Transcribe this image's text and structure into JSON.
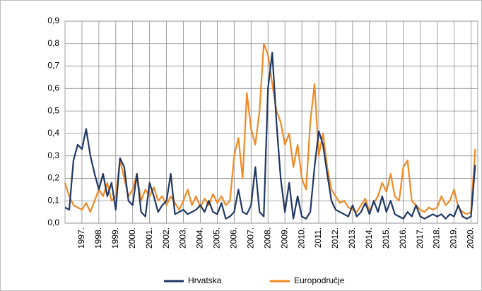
{
  "chart_data": {
    "type": "line",
    "xlim": [
      1996,
      2020.4
    ],
    "ylim": [
      0,
      0.9
    ],
    "yticks": [
      {
        "value": 0,
        "label": "0,0"
      },
      {
        "value": 0.1,
        "label": "0,1"
      },
      {
        "value": 0.2,
        "label": "0,2"
      },
      {
        "value": 0.3,
        "label": "0,3"
      },
      {
        "value": 0.4,
        "label": "0,4"
      },
      {
        "value": 0.5,
        "label": "0,5"
      },
      {
        "value": 0.6,
        "label": "0,6"
      },
      {
        "value": 0.7,
        "label": "0,7"
      },
      {
        "value": 0.8,
        "label": "0,8"
      },
      {
        "value": 0.9,
        "label": "0,9"
      }
    ],
    "xticks": [
      {
        "value": 1997,
        "label": "1997."
      },
      {
        "value": 1998,
        "label": "1998."
      },
      {
        "value": 1999,
        "label": "1999."
      },
      {
        "value": 2000,
        "label": "2000."
      },
      {
        "value": 2001,
        "label": "2001."
      },
      {
        "value": 2002,
        "label": "2002."
      },
      {
        "value": 2003,
        "label": "2003."
      },
      {
        "value": 2004,
        "label": "2004."
      },
      {
        "value": 2005,
        "label": "2005."
      },
      {
        "value": 2006,
        "label": "2006."
      },
      {
        "value": 2007,
        "label": "2007."
      },
      {
        "value": 2008,
        "label": "2008."
      },
      {
        "value": 2009,
        "label": "2009."
      },
      {
        "value": 2010,
        "label": "2010."
      },
      {
        "value": 2011,
        "label": "2011."
      },
      {
        "value": 2012,
        "label": "2012."
      },
      {
        "value": 2013,
        "label": "2013."
      },
      {
        "value": 2014,
        "label": "2014."
      },
      {
        "value": 2015,
        "label": "2015."
      },
      {
        "value": 2016,
        "label": "2016."
      },
      {
        "value": 2017,
        "label": "2017."
      },
      {
        "value": 2018,
        "label": "2018."
      },
      {
        "value": 2019,
        "label": "2019."
      },
      {
        "value": 2020,
        "label": "2020."
      }
    ],
    "grid": true,
    "legend": "bottom",
    "x": [
      1996.0,
      1996.25,
      1996.5,
      1996.75,
      1997.0,
      1997.25,
      1997.5,
      1997.75,
      1998.0,
      1998.25,
      1998.5,
      1998.75,
      1999.0,
      1999.25,
      1999.5,
      1999.75,
      2000.0,
      2000.25,
      2000.5,
      2000.75,
      2001.0,
      2001.25,
      2001.5,
      2001.75,
      2002.0,
      2002.25,
      2002.5,
      2002.75,
      2003.0,
      2003.25,
      2003.5,
      2003.75,
      2004.0,
      2004.25,
      2004.5,
      2004.75,
      2005.0,
      2005.25,
      2005.5,
      2005.75,
      2006.0,
      2006.25,
      2006.5,
      2006.75,
      2007.0,
      2007.25,
      2007.5,
      2007.75,
      2008.0,
      2008.25,
      2008.5,
      2008.75,
      2009.0,
      2009.25,
      2009.5,
      2009.75,
      2010.0,
      2010.25,
      2010.5,
      2010.75,
      2011.0,
      2011.25,
      2011.5,
      2011.75,
      2012.0,
      2012.25,
      2012.5,
      2012.75,
      2013.0,
      2013.25,
      2013.5,
      2013.75,
      2014.0,
      2014.25,
      2014.5,
      2014.75,
      2015.0,
      2015.25,
      2015.5,
      2015.75,
      2016.0,
      2016.25,
      2016.5,
      2016.75,
      2017.0,
      2017.25,
      2017.5,
      2017.75,
      2018.0,
      2018.25,
      2018.5,
      2018.75,
      2019.0,
      2019.25,
      2019.5,
      2019.75,
      2020.0,
      2020.25
    ],
    "series": [
      {
        "name": "Hrvatska",
        "color": "#1f3864",
        "values": [
          0.07,
          0.06,
          0.28,
          0.35,
          0.33,
          0.42,
          0.3,
          0.22,
          0.15,
          0.22,
          0.12,
          0.18,
          0.06,
          0.29,
          0.25,
          0.1,
          0.08,
          0.22,
          0.05,
          0.03,
          0.18,
          0.12,
          0.05,
          0.08,
          0.1,
          0.22,
          0.04,
          0.05,
          0.06,
          0.04,
          0.05,
          0.06,
          0.08,
          0.05,
          0.1,
          0.05,
          0.04,
          0.09,
          0.02,
          0.03,
          0.05,
          0.15,
          0.05,
          0.04,
          0.08,
          0.25,
          0.05,
          0.03,
          0.6,
          0.76,
          0.45,
          0.2,
          0.05,
          0.18,
          0.02,
          0.12,
          0.03,
          0.02,
          0.05,
          0.25,
          0.41,
          0.35,
          0.22,
          0.1,
          0.06,
          0.05,
          0.04,
          0.03,
          0.08,
          0.03,
          0.05,
          0.09,
          0.04,
          0.1,
          0.05,
          0.12,
          0.05,
          0.1,
          0.04,
          0.03,
          0.02,
          0.05,
          0.03,
          0.08,
          0.03,
          0.02,
          0.03,
          0.04,
          0.03,
          0.04,
          0.02,
          0.04,
          0.03,
          0.08,
          0.03,
          0.02,
          0.03,
          0.26
        ]
      },
      {
        "name": "Europodručje",
        "color": "#f08a24",
        "values": [
          0.18,
          0.12,
          0.08,
          0.07,
          0.06,
          0.09,
          0.05,
          0.1,
          0.15,
          0.12,
          0.18,
          0.1,
          0.12,
          0.28,
          0.2,
          0.12,
          0.15,
          0.22,
          0.1,
          0.15,
          0.12,
          0.16,
          0.1,
          0.12,
          0.08,
          0.12,
          0.09,
          0.06,
          0.1,
          0.15,
          0.08,
          0.12,
          0.07,
          0.11,
          0.08,
          0.13,
          0.09,
          0.12,
          0.08,
          0.1,
          0.3,
          0.38,
          0.2,
          0.58,
          0.42,
          0.35,
          0.5,
          0.8,
          0.75,
          0.62,
          0.5,
          0.45,
          0.35,
          0.4,
          0.25,
          0.35,
          0.2,
          0.15,
          0.45,
          0.62,
          0.3,
          0.4,
          0.25,
          0.15,
          0.12,
          0.09,
          0.1,
          0.07,
          0.06,
          0.05,
          0.08,
          0.11,
          0.05,
          0.09,
          0.12,
          0.18,
          0.14,
          0.22,
          0.12,
          0.1,
          0.25,
          0.28,
          0.1,
          0.08,
          0.06,
          0.05,
          0.07,
          0.06,
          0.07,
          0.12,
          0.08,
          0.1,
          0.15,
          0.07,
          0.05,
          0.04,
          0.05,
          0.33
        ]
      }
    ]
  }
}
